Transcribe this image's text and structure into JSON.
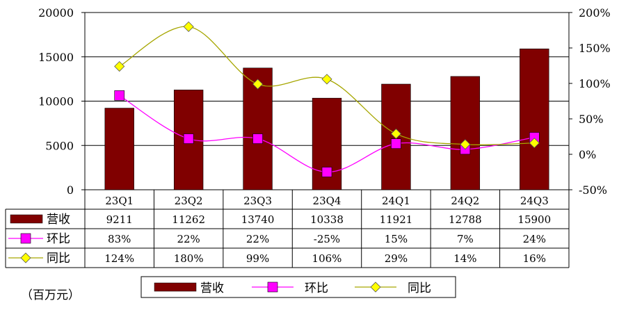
{
  "chart_data": {
    "type": "bar",
    "categories": [
      "23Q1",
      "23Q2",
      "23Q3",
      "23Q4",
      "24Q1",
      "24Q2",
      "24Q3"
    ],
    "series": [
      {
        "name": "营收",
        "type": "bar",
        "axis": "left",
        "color": "#800000",
        "values": [
          9211,
          11262,
          13740,
          10338,
          11921,
          12788,
          15900
        ],
        "labels": [
          "9211",
          "11262",
          "13740",
          "10338",
          "11921",
          "12788",
          "15900"
        ]
      },
      {
        "name": "环比",
        "type": "line",
        "axis": "right",
        "color": "#ff00ff",
        "marker": "square",
        "values": [
          83,
          22,
          22,
          -25,
          15,
          7,
          24
        ],
        "labels": [
          "83%",
          "22%",
          "22%",
          "-25%",
          "15%",
          "7%",
          "24%"
        ]
      },
      {
        "name": "同比",
        "type": "line",
        "axis": "right",
        "color": "#a6a600",
        "marker": "diamond",
        "marker_color": "#ffff00",
        "values": [
          124,
          180,
          99,
          106,
          29,
          14,
          16
        ],
        "labels": [
          "124%",
          "180%",
          "99%",
          "106%",
          "29%",
          "14%",
          "16%"
        ]
      }
    ],
    "ylim_left": [
      0,
      20000
    ],
    "yticks_left": [
      "0",
      "5000",
      "10000",
      "15000",
      "20000"
    ],
    "ylim_right": [
      -50,
      200
    ],
    "yticks_right": [
      "-50%",
      "0%",
      "50%",
      "100%",
      "150%",
      "200%"
    ],
    "grid": true,
    "legend": "bottom",
    "unit_label": "（百万元）"
  }
}
